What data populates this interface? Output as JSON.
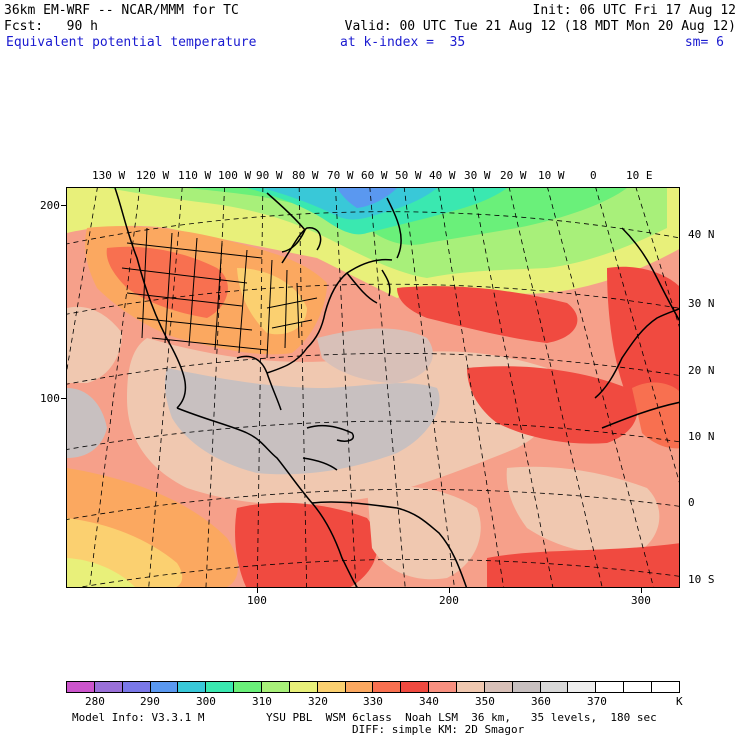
{
  "header": {
    "line1_left": "36km EM-WRF -- NCAR/MMM for TC",
    "line1_right": "Init: 06 UTC Fri 17 Aug 12",
    "line2_left": "Fcst:   90 h",
    "line2_right": "Valid: 00 UTC Tue 21 Aug 12 (18 MDT Mon 20 Aug 12)",
    "field_name": "Equivalent potential temperature",
    "level": "at k-index =  35",
    "smoothing": "sm= 6"
  },
  "map": {
    "longitude_labels": [
      "130 W",
      "120 W",
      "110 W",
      "100 W",
      "90 W",
      "80 W",
      "70 W",
      "60 W",
      "50 W",
      "40 W",
      "30 W",
      "20 W",
      "10 W",
      "0",
      "10 E"
    ],
    "latitude_labels": [
      "40 N",
      "30 N",
      "20 N",
      "10 N",
      "0",
      "10 S"
    ],
    "grid_x_labels": [
      "100",
      "200",
      "300"
    ],
    "grid_y_labels": [
      "200",
      "100"
    ]
  },
  "colorbar": {
    "colors": [
      "#cc55cc",
      "#9a70d8",
      "#7a78e8",
      "#5a98f0",
      "#39c8d8",
      "#3ae8b0",
      "#6af07a",
      "#a8f07a",
      "#e8f07a",
      "#fbd070",
      "#fba860",
      "#f87050",
      "#f04a40",
      "#f89080",
      "#f0c8b0",
      "#d8c0b8",
      "#c8c0c0",
      "#d8d8d8",
      "#eeeeee",
      "#ffffff",
      "#ffffff",
      "#ffffff"
    ],
    "tick_labels": [
      "280",
      "290",
      "300",
      "310",
      "320",
      "330",
      "340",
      "350",
      "360",
      "370"
    ],
    "unit": "K"
  },
  "footer": {
    "model_info": "Model Info: V3.3.1 M",
    "physics": "YSU PBL  WSM 6class  Noah LSM  36 km,   35 levels,  180 sec",
    "diffusion": "DIFF: simple KM: 2D Smagor"
  }
}
